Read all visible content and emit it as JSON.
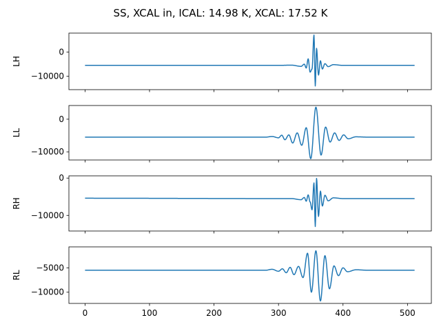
{
  "figure": {
    "suptitle": "SS, XCAL in, ICAL: 14.98 K, XCAL: 17.52 K"
  },
  "style": {
    "line_color": "#1f77b4",
    "axes_color": "#000000",
    "background": "#ffffff"
  },
  "chart_data": [
    {
      "type": "line",
      "ylabel": "LH",
      "xlim": [
        -25,
        537
      ],
      "ylim": [
        -15500,
        7800
      ],
      "yticks": [
        0,
        -10000
      ],
      "ytick_labels": [
        "0",
        "−10000"
      ],
      "baseline": -5500,
      "show_xtick_labels": false,
      "x": [
        0,
        300,
        320,
        335,
        340,
        343,
        346,
        349,
        352,
        355,
        357,
        359,
        362,
        365,
        368,
        372,
        377,
        385,
        400,
        430,
        511
      ],
      "y": [
        -5500,
        -5500,
        -5400,
        -5900,
        -5000,
        -6600,
        -2800,
        -8300,
        -7000,
        7000,
        -14000,
        1500,
        -9500,
        -3600,
        -7000,
        -4800,
        -6000,
        -5200,
        -5500,
        -5500,
        -5500
      ]
    },
    {
      "type": "line",
      "ylabel": "LL",
      "xlim": [
        -25,
        537
      ],
      "ylim": [
        -12500,
        4200
      ],
      "yticks": [
        0,
        -10000
      ],
      "ytick_labels": [
        "0",
        "−10000"
      ],
      "baseline": -5500,
      "show_xtick_labels": false,
      "x": [
        0,
        280,
        290,
        300,
        305,
        310,
        316,
        322,
        329,
        336,
        343,
        350,
        358,
        366,
        373,
        380,
        387,
        394,
        401,
        408,
        420,
        440,
        511
      ],
      "y": [
        -5500,
        -5500,
        -5300,
        -5700,
        -4900,
        -6300,
        -4800,
        -7300,
        -4200,
        -8000,
        -2600,
        -12100,
        3700,
        -11000,
        -2400,
        -7000,
        -4200,
        -6500,
        -4800,
        -6000,
        -5400,
        -5500,
        -5500
      ]
    },
    {
      "type": "line",
      "ylabel": "RH",
      "xlim": [
        -25,
        537
      ],
      "ylim": [
        -14200,
        600
      ],
      "yticks": [
        0,
        -10000
      ],
      "ytick_labels": [
        "0",
        "−10000"
      ],
      "baseline": -5500,
      "show_xtick_labels": false,
      "x": [
        0,
        300,
        320,
        335,
        340,
        343,
        346,
        349,
        352,
        355,
        357,
        359,
        362,
        365,
        368,
        372,
        377,
        385,
        400,
        511
      ],
      "y": [
        -5400,
        -5500,
        -5500,
        -5800,
        -5200,
        -6200,
        -4500,
        -6400,
        -8500,
        -1300,
        -13000,
        -100,
        -10300,
        -3500,
        -7500,
        -4600,
        -6100,
        -5300,
        -5500,
        -5500
      ]
    },
    {
      "type": "line",
      "ylabel": "RL",
      "xlim": [
        -25,
        537
      ],
      "ylim": [
        -12300,
        -700
      ],
      "yticks": [
        -5000,
        -10000
      ],
      "ytick_labels": [
        "−5000",
        "−10000"
      ],
      "baseline": -5500,
      "show_xtick_labels": true,
      "xticks": [
        0,
        100,
        200,
        300,
        400,
        500
      ],
      "xtick_labels": [
        "0",
        "100",
        "200",
        "300",
        "400",
        "500"
      ],
      "x": [
        0,
        280,
        290,
        300,
        306,
        312,
        318,
        324,
        331,
        338,
        345,
        351,
        358,
        365,
        372,
        379,
        386,
        393,
        400,
        407,
        420,
        440,
        511
      ],
      "y": [
        -5500,
        -5500,
        -5300,
        -5700,
        -5200,
        -6000,
        -4900,
        -6400,
        -4700,
        -7000,
        -2000,
        -10000,
        -1500,
        -11800,
        -2500,
        -9300,
        -4600,
        -6600,
        -5000,
        -5800,
        -5400,
        -5500,
        -5500
      ]
    }
  ]
}
